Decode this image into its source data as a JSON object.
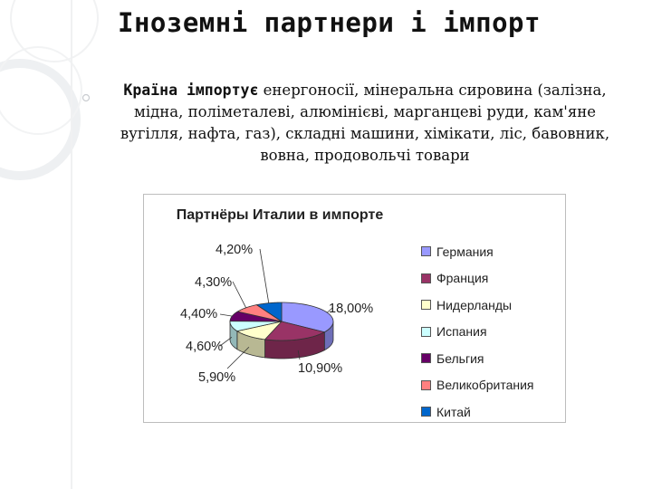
{
  "slide": {
    "title": "Іноземні партнери і імпорт",
    "lead": "Країна імпортує",
    "body": "енергоносії, мінеральна сировина (залізна, мідна, поліметалеві, алюмінієві, марганцеві руди, кам'яне вугілля, нафта, газ), складні машини, хімікати, ліс, бавовник, вовна, продовольчі товари"
  },
  "chart_data": {
    "type": "pie",
    "title": "Партнёры Италии в импорте",
    "legend_position": "right",
    "categories": [
      "Германия",
      "Франция",
      "Нидерланды",
      "Испания",
      "Бельгия",
      "Великобритания",
      "Китай"
    ],
    "values": [
      18.0,
      10.9,
      5.9,
      4.6,
      4.4,
      4.3,
      4.2
    ],
    "labels": [
      "18,00%",
      "10,90%",
      "5,90%",
      "4,60%",
      "4,40%",
      "4,30%",
      "4,20%"
    ],
    "colors": [
      "#9999ff",
      "#993366",
      "#ffffcc",
      "#ccffff",
      "#660066",
      "#ff8080",
      "#0066cc"
    ]
  }
}
